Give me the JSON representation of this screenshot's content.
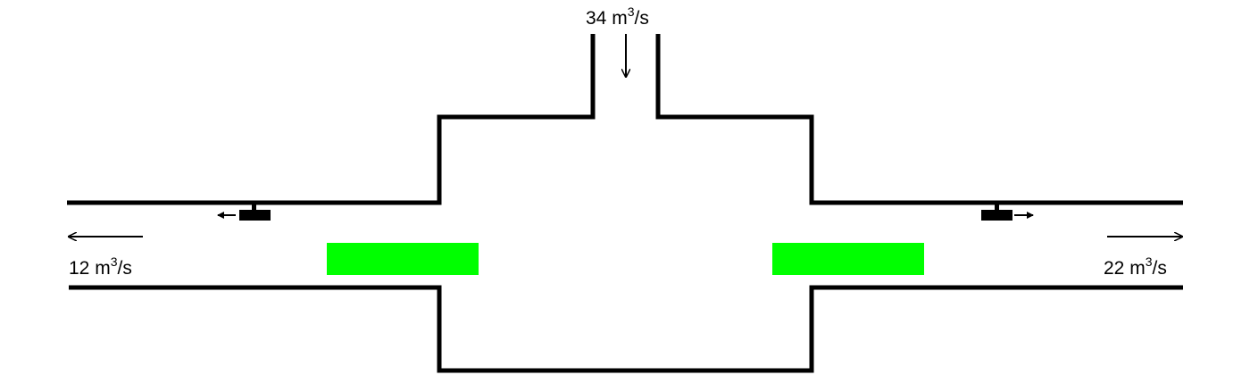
{
  "flows": {
    "inlet": {
      "value": "34",
      "unit_base": "m",
      "unit_exp": "3",
      "unit_tail": "/s"
    },
    "outlet_left": {
      "value": "12",
      "unit_base": "m",
      "unit_exp": "3",
      "unit_tail": "/s"
    },
    "outlet_right": {
      "value": "22",
      "unit_base": "m",
      "unit_exp": "3",
      "unit_tail": "/s"
    }
  },
  "colors": {
    "wall": "#000000",
    "filter": "#00ff00",
    "background": "#ffffff"
  }
}
